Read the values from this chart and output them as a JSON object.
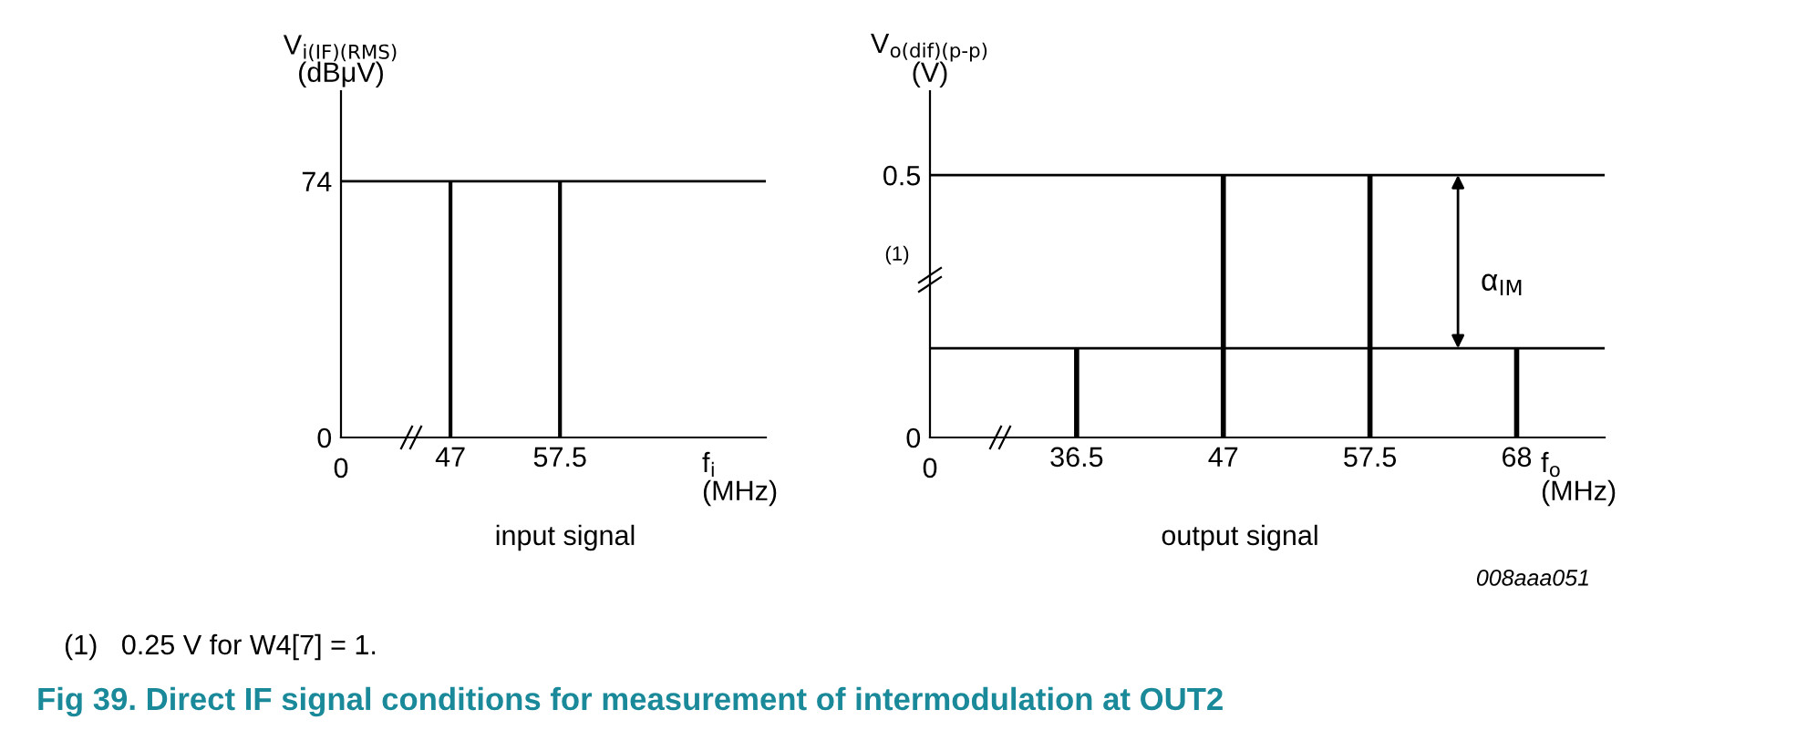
{
  "chart_data": [
    {
      "type": "bar",
      "title": "Fig 39. Direct IF signal conditions for measurement of intermodulation at OUT2",
      "categories": [
        "47",
        "57.5"
      ],
      "values": [
        74,
        74
      ],
      "color": "#000000",
      "ylim": [
        0,
        100
      ],
      "yticks": [
        0,
        74
      ],
      "ylabel": "V$_{i(IF)(RMS)}$\n(dBμV)",
      "xlabel": "f$_{i}$\n(MHz)",
      "grid": false,
      "legend": false,
      "ref_lines": [
        {
          "axis": "y",
          "value": 74,
          "color": "#000000"
        }
      ],
      "annotations": [
        "0",
        "input signal",
        "(1)   0.25 V for W4[7] = 1."
      ]
    },
    {
      "type": "bar",
      "categories": [
        "36.5",
        "47",
        "57.5",
        "68"
      ],
      "values": [
        0.17,
        0.5,
        0.5,
        0.17
      ],
      "color": "#000000",
      "ylim": [
        0,
        0.66
      ],
      "yticks": [
        0,
        0.5
      ],
      "ylabel": "V$_{o(dif)(p-p)}$\n(V)",
      "xlabel": "f$_{o}$\n(MHz)",
      "grid": false,
      "legend": false,
      "ref_lines": [
        {
          "axis": "y",
          "value": 0.5,
          "color": "#000000"
        },
        {
          "axis": "y",
          "value": 0.17,
          "color": "#000000"
        }
      ],
      "annotations": [
        "0",
        "output signal",
        "(1)",
        "α$_{IM}$",
        "008aaa051"
      ]
    }
  ]
}
